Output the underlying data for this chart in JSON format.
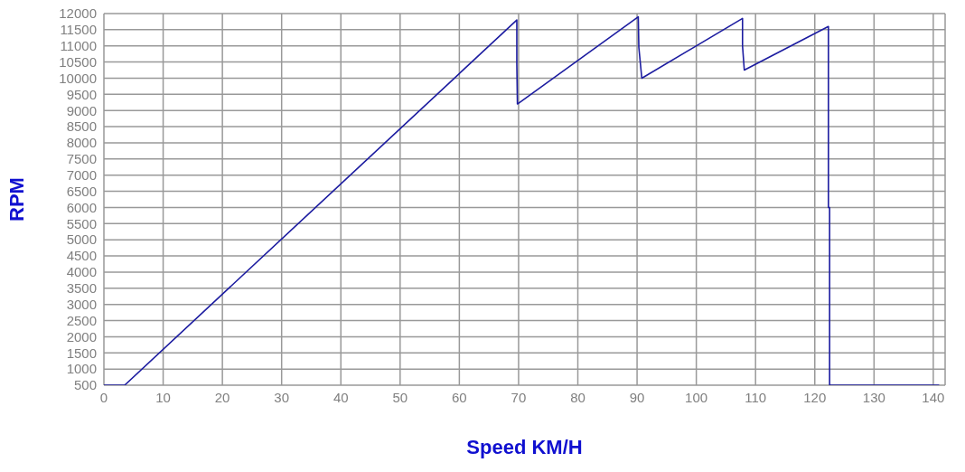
{
  "chart_data": {
    "type": "line",
    "xlabel": "Speed KM/H",
    "ylabel": "RPM",
    "x": [
      0,
      3.5,
      69.7,
      69.7,
      69.8,
      90.2,
      90.3,
      90.8,
      107.8,
      107.8,
      108.1,
      122.3,
      122.3,
      122.5,
      122.5,
      141
    ],
    "series": [
      {
        "color": "#1c1ca0",
        "values": [
          500,
          500,
          11800,
          10450,
          9200,
          11900,
          10950,
          10000,
          11850,
          11000,
          10250,
          11600,
          6000,
          6000,
          500,
          500
        ]
      }
    ],
    "xlim": [
      0,
      142
    ],
    "xticks": [
      0,
      10,
      20,
      30,
      40,
      50,
      60,
      70,
      80,
      90,
      100,
      110,
      120,
      130,
      140
    ],
    "ylim": [
      500,
      12000
    ],
    "yticks": [
      500,
      1000,
      1500,
      2000,
      2500,
      3000,
      3500,
      4000,
      4500,
      5000,
      5500,
      6000,
      6500,
      7000,
      7500,
      8000,
      8500,
      9000,
      9500,
      10000,
      10500,
      11000,
      11500,
      12000
    ],
    "grid": true,
    "marker": "none",
    "line_style": "solid"
  }
}
